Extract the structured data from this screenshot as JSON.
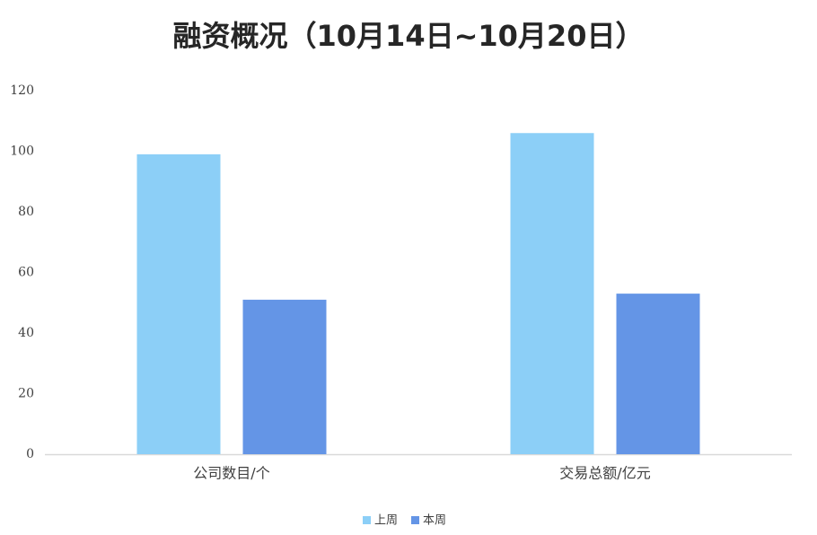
{
  "chart_data": {
    "type": "bar",
    "title": "融资概况（10月14日~10月20日）",
    "categories": [
      "公司数目/个",
      "交易总额/亿元"
    ],
    "series": [
      {
        "name": "上周",
        "color": "#8ccff7",
        "values": [
          99,
          106
        ]
      },
      {
        "name": "本周",
        "color": "#6495e6",
        "values": [
          51,
          53
        ]
      }
    ],
    "ylim": [
      0,
      120
    ],
    "yticks": [
      0,
      20,
      40,
      60,
      80,
      100,
      120
    ],
    "grid": false,
    "legend": "bottom"
  }
}
